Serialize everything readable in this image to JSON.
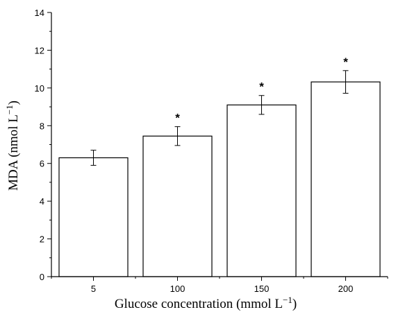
{
  "chart_data": {
    "type": "bar",
    "categories": [
      "5",
      "100",
      "150",
      "200"
    ],
    "values": [
      6.3,
      7.45,
      9.1,
      10.32
    ],
    "errors": [
      0.4,
      0.5,
      0.5,
      0.6
    ],
    "annotations": [
      "",
      "*",
      "*",
      "*"
    ],
    "xlabel_main": "Glucose concentration (mmol L",
    "xlabel_sup": "−1",
    "xlabel_end": ")",
    "ylabel_main": "MDA (nmol L",
    "ylabel_sup": "−1",
    "ylabel_end": ")",
    "ylim": [
      0,
      14
    ],
    "yticks": [
      "0",
      "2",
      "4",
      "6",
      "8",
      "10",
      "12",
      "14"
    ],
    "legend": "none",
    "grid": false
  }
}
